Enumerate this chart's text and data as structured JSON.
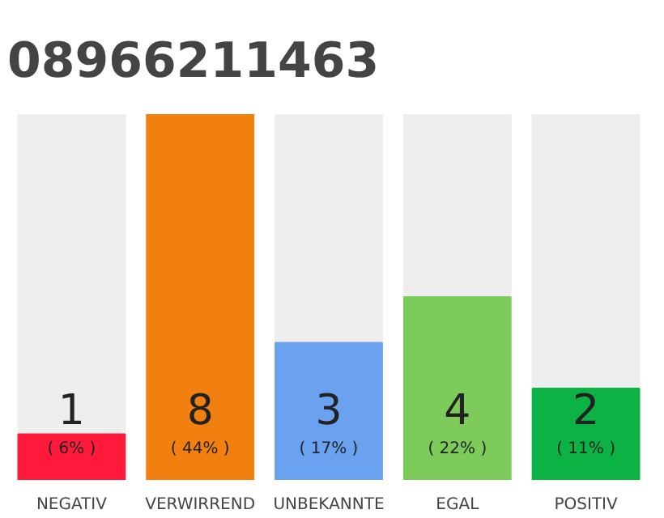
{
  "chart_data": {
    "type": "bar",
    "title": "08966211463",
    "categories": [
      "NEGATIV",
      "VERWIRREND",
      "UNBEKANNTE",
      "EGAL",
      "POSITIV"
    ],
    "values": [
      1,
      8,
      3,
      4,
      2
    ],
    "colors": [
      "#ff1a3c",
      "#f28010",
      "#6aa2f0",
      "#7dcb5a",
      "#0cb244"
    ],
    "ylim": [
      0,
      8
    ],
    "data_labels": true,
    "grid": false,
    "annotations": [
      "( 6% )",
      "( 44% )",
      "( 17% )",
      "( 22% )",
      "( 11% )"
    ]
  }
}
